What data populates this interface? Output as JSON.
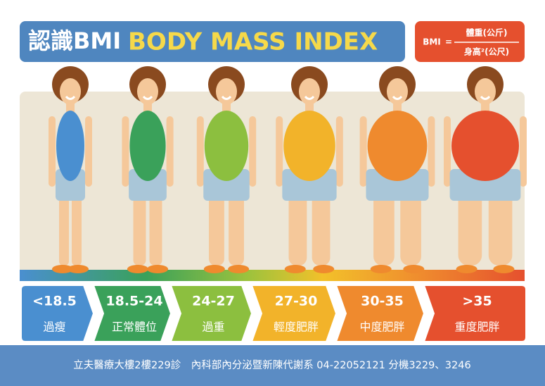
{
  "header": {
    "title_zh": "認識BMI",
    "title_en": "BODY MASS INDEX"
  },
  "formula": {
    "lhs": "BMI",
    "eq": "=",
    "numerator": "體重(公斤)",
    "denominator": "身高²(公尺)"
  },
  "categories": [
    {
      "range": "<18.5",
      "label": "過瘦"
    },
    {
      "range": "18.5-24",
      "label": "正常體位"
    },
    {
      "range": "24-27",
      "label": "過重"
    },
    {
      "range": "27-30",
      "label": "輕度肥胖"
    },
    {
      "range": "30-35",
      "label": "中度肥胖"
    },
    {
      "range": ">35",
      "label": "重度肥胖"
    }
  ],
  "footer": "立夫醫療大樓2樓229診　內科部內分泌暨新陳代謝系 04-22052121 分機3229、3246"
}
